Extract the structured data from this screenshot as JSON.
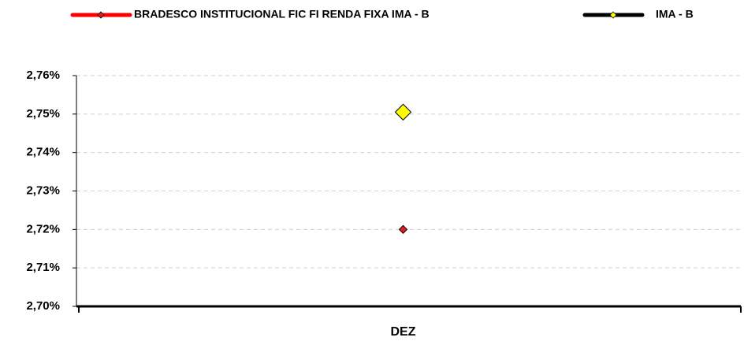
{
  "chart_data": {
    "type": "line",
    "categories": [
      "DEZ"
    ],
    "series": [
      {
        "name": "BRADESCO INSTITUCIONAL FIC FI RENDA FIXA IMA - B",
        "color": "#ff0000",
        "marker_color": "#e31a1c",
        "values": [
          2.72
        ]
      },
      {
        "name": "IMA - B",
        "color": "#000000",
        "marker_color": "#ffff00",
        "values": [
          2.7505
        ]
      }
    ],
    "ylim": [
      2.7,
      2.76
    ],
    "yticks": [
      {
        "value": 2.7,
        "label": "2,70%"
      },
      {
        "value": 2.71,
        "label": "2,71%"
      },
      {
        "value": 2.72,
        "label": "2,72%"
      },
      {
        "value": 2.73,
        "label": "2,73%"
      },
      {
        "value": 2.74,
        "label": "2,74%"
      },
      {
        "value": 2.75,
        "label": "2,75%"
      },
      {
        "value": 2.76,
        "label": "2,76%"
      }
    ],
    "grid": true,
    "legend": "top"
  }
}
